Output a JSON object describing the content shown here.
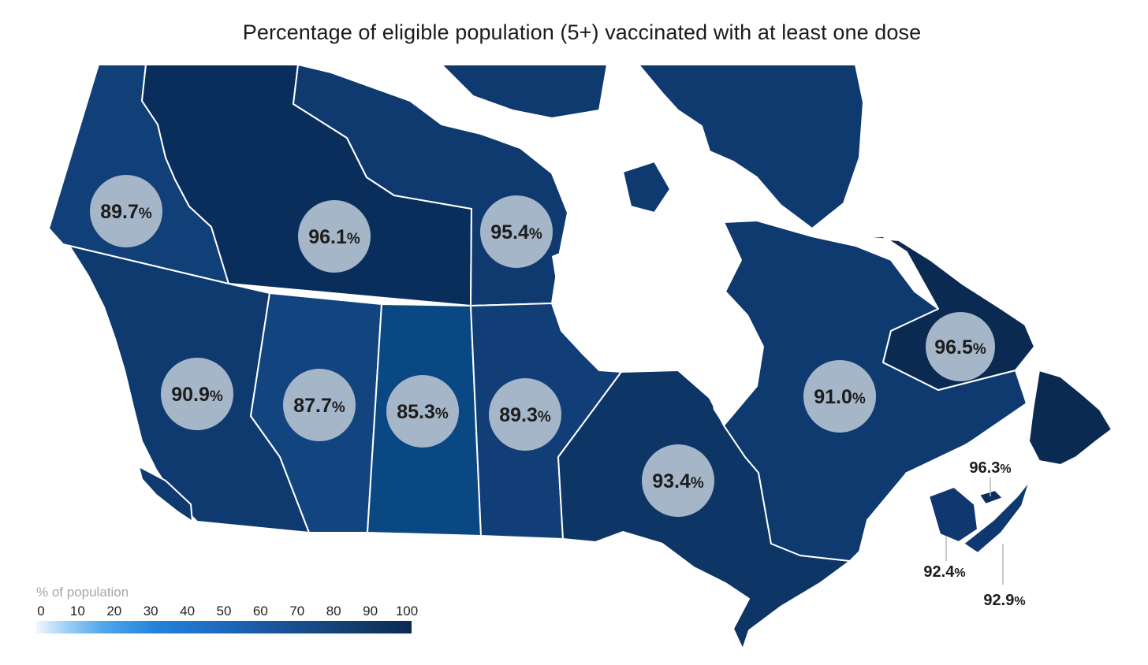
{
  "title": "Percentage of eligible population (5+) vaccinated with at least one dose",
  "legend": {
    "title": "% of population",
    "ticks": [
      "0",
      "10",
      "20",
      "30",
      "40",
      "50",
      "60",
      "70",
      "80",
      "90",
      "100"
    ],
    "range": [
      0,
      100
    ]
  },
  "colors": {
    "scale_low": "#f0f7ff",
    "scale_high": "#0b2a52",
    "label_bubble": "#a5b6c8",
    "borders": "#ffffff",
    "water": "#ffffff"
  },
  "regions": [
    {
      "id": "YT",
      "value": 89.7,
      "label": "89.7",
      "suffix": "%",
      "color": "#113f78"
    },
    {
      "id": "NT",
      "value": 96.1,
      "label": "96.1",
      "suffix": "%",
      "color": "#0a2e5c"
    },
    {
      "id": "NU",
      "value": 95.4,
      "label": "95.4",
      "suffix": "%",
      "color": "#0f3a6f"
    },
    {
      "id": "BC",
      "value": 90.9,
      "label": "90.9",
      "suffix": "%",
      "color": "#0e3a70"
    },
    {
      "id": "AB",
      "value": 87.7,
      "label": "87.7",
      "suffix": "%",
      "color": "#124580"
    },
    {
      "id": "SK",
      "value": 85.3,
      "label": "85.3",
      "suffix": "%",
      "color": "#0a4883"
    },
    {
      "id": "MB",
      "value": 89.3,
      "label": "89.3",
      "suffix": "%",
      "color": "#123e78"
    },
    {
      "id": "ON",
      "value": 93.4,
      "label": "93.4",
      "suffix": "%",
      "color": "#0d3667"
    },
    {
      "id": "QC",
      "value": 91.0,
      "label": "91.0",
      "suffix": "%",
      "color": "#0e3a70"
    },
    {
      "id": "NL",
      "value": 96.5,
      "label": "96.5",
      "suffix": "%",
      "color": "#0b2a52"
    },
    {
      "id": "PE",
      "value": 96.3,
      "label": "96.3",
      "suffix": "%",
      "color": "#0c2f5e"
    },
    {
      "id": "NB",
      "value": 92.4,
      "label": "92.4",
      "suffix": "%",
      "color": "#0f3870"
    },
    {
      "id": "NS",
      "value": 92.9,
      "label": "92.9",
      "suffix": "%",
      "color": "#0f3870"
    }
  ]
}
